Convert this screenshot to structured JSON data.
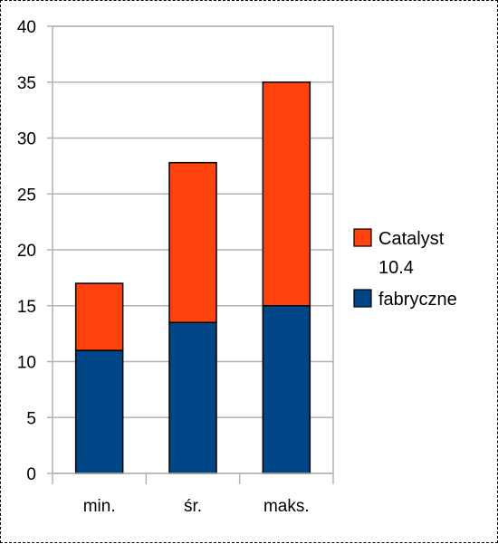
{
  "chart_data": {
    "type": "bar",
    "stacked": true,
    "categories": [
      "min.",
      "śr.",
      "maks."
    ],
    "series": [
      {
        "name": "fabryczne",
        "values": [
          11,
          13.5,
          15
        ],
        "color": "#004586"
      },
      {
        "name": "Catalyst 10.4",
        "values": [
          6,
          14.3,
          20
        ],
        "color": "#ff420e"
      }
    ],
    "ylim": [
      0,
      40
    ],
    "yticks": [
      0,
      5,
      10,
      15,
      20,
      25,
      30,
      35,
      40
    ],
    "grid": true,
    "legend_position": "right",
    "legend": {
      "items": [
        {
          "label_lines": [
            "Catalyst",
            "10.4"
          ],
          "color": "#ff420e"
        },
        {
          "label_lines": [
            "fabryczne"
          ],
          "color": "#004586"
        }
      ]
    }
  }
}
